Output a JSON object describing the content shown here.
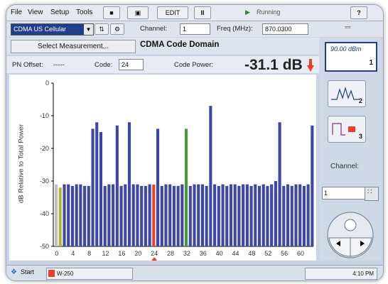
{
  "menu": {
    "file": "File",
    "view": "View",
    "setup": "Setup",
    "tools": "Tools"
  },
  "toolbar": {
    "save": "■",
    "camera": "▣",
    "edit": "EDIT",
    "pause": "II",
    "status": "Running",
    "help": "?"
  },
  "params": {
    "technology": "CDMA US Cellular",
    "channel_label": "Channel:",
    "channel_value": "1",
    "freq_label": "Freq (MHz):",
    "freq_value": "870.0300"
  },
  "measurement": {
    "select_label": "Select Measurement...",
    "title": "CDMA Code Domain"
  },
  "readout": {
    "pn_label": "PN Offset:",
    "pn_value": "-----",
    "code_label": "Code:",
    "code_value": "24",
    "power_label": "Code Power:",
    "power_value": "-31.1 dB"
  },
  "right_panel": {
    "ref_level": "90.00 dBm",
    "trace_num": "1",
    "icon2_num": "2",
    "icon3_num": "3",
    "channel_label": "Channel:",
    "channel_value": "1"
  },
  "taskbar": {
    "start": "Start",
    "task": "W-250",
    "clock": "4:10 PM"
  },
  "colors": {
    "bar": "#3f47a6",
    "marker_red": "#e8402a",
    "highlight_green": "#4b9a3a",
    "highlight_yellow": "#b5b23a",
    "noise_gray": "#bfbfbf"
  },
  "chart_data": {
    "type": "bar",
    "ylabel": "dB Relative to Total Power",
    "ylim": [
      -50,
      0
    ],
    "xticks": [
      0,
      4,
      8,
      12,
      16,
      20,
      24,
      28,
      32,
      36,
      40,
      44,
      48,
      52,
      56,
      60
    ],
    "yticks": [
      0,
      -10,
      -20,
      -30,
      -40,
      -50
    ],
    "selected_code": 24,
    "values": [
      -31,
      -32,
      -31,
      -31,
      -31.5,
      -31,
      -31,
      -31.5,
      -31.5,
      -14,
      -12,
      -15,
      -31.5,
      -31,
      -31,
      -13,
      -31.5,
      -31,
      -12,
      -31,
      -31,
      -31.5,
      -31.5,
      -31,
      -31.1,
      -14,
      -31.5,
      -31,
      -31,
      -31.5,
      -31.5,
      -31,
      -14,
      -31.5,
      -31,
      -31,
      -31,
      -31.5,
      -7,
      -31,
      -31.5,
      -31,
      -31.5,
      -31,
      -31,
      -31.5,
      -31,
      -31,
      -31.5,
      -31,
      -31.5,
      -31,
      -31.5,
      -31,
      -30,
      -12,
      -31.5,
      -31,
      -31.5,
      -31,
      -31,
      -31.5,
      -31,
      -13
    ],
    "highlight": {
      "0": "noise_gray",
      "1": "highlight_yellow",
      "24": "marker_red",
      "32": "highlight_green"
    }
  }
}
